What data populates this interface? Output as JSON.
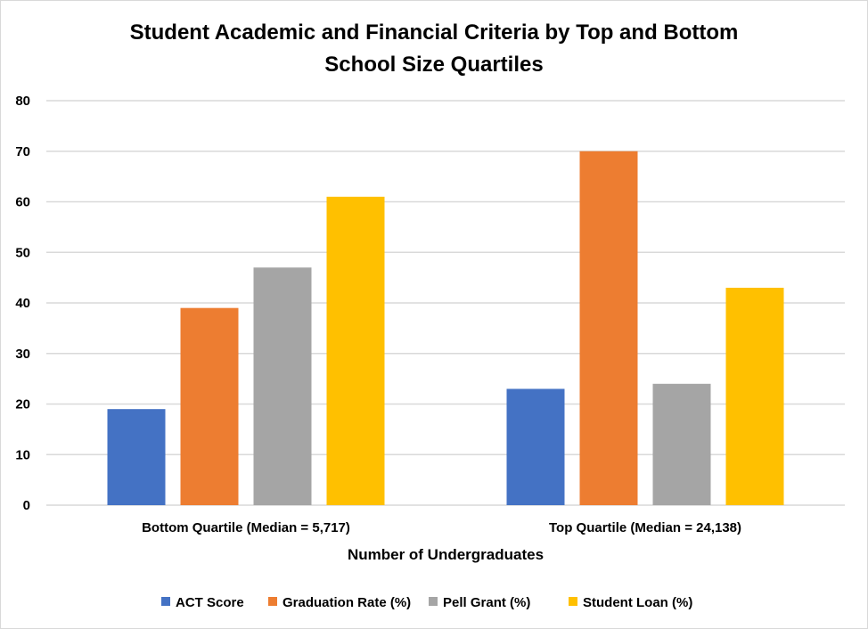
{
  "chart_data": {
    "type": "bar",
    "title": [
      "Student Academic and Financial Criteria by Top and Bottom",
      "School Size Quartiles"
    ],
    "xlabel": "Number of Undergraduates",
    "ylabel": "",
    "ylim": [
      0,
      80
    ],
    "yticks": [
      0,
      10,
      20,
      30,
      40,
      50,
      60,
      70,
      80
    ],
    "grid": true,
    "legend_position": "bottom",
    "categories": [
      "Bottom Quartile (Median = 5,717)",
      "Top Quartile (Median = 24,138)"
    ],
    "series": [
      {
        "name": "ACT Score",
        "color": "#4472c4",
        "values": [
          19,
          23
        ]
      },
      {
        "name": "Graduation Rate (%)",
        "color": "#ed7d31",
        "values": [
          39,
          70
        ]
      },
      {
        "name": "Pell Grant (%)",
        "color": "#a5a5a5",
        "values": [
          47,
          24
        ]
      },
      {
        "name": "Student Loan (%)",
        "color": "#ffc000",
        "values": [
          61,
          43
        ]
      }
    ]
  }
}
